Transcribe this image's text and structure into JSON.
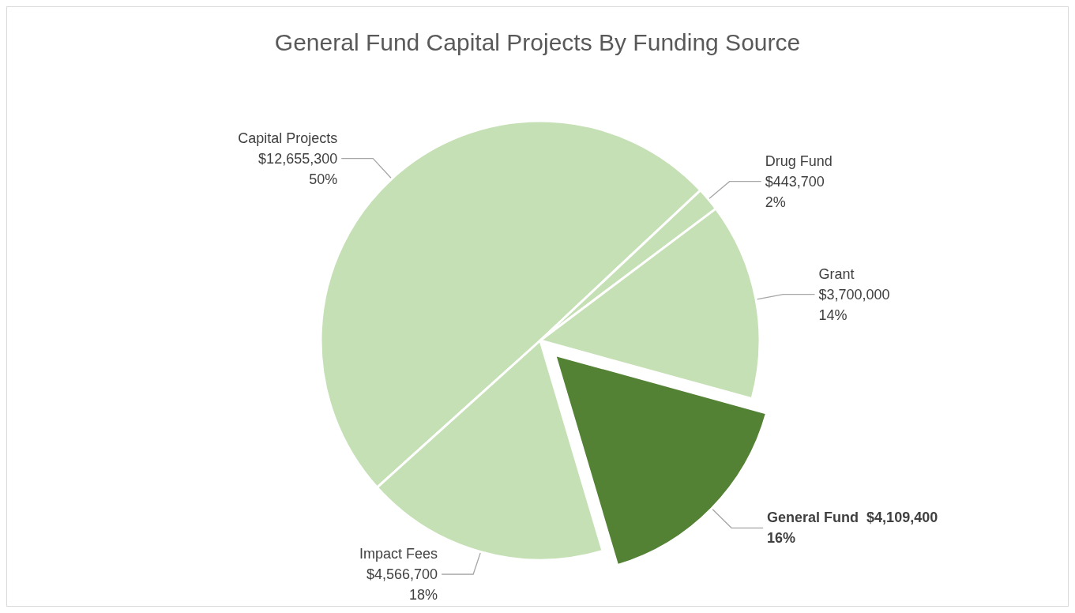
{
  "chart_data": {
    "type": "pie",
    "title": "General Fund Capital Projects By Funding Source",
    "categories": [
      "Capital Projects",
      "Drug Fund",
      "Grant",
      "General Fund",
      "Impact Fees"
    ],
    "values": [
      12655300,
      443700,
      3700000,
      4109400,
      4566700
    ],
    "value_labels": [
      "$12,655,300\n50%",
      "$443,700\n2%",
      "$3,700,000\n14%",
      "$4,109,400\n16%",
      "$4,566,700\n18%"
    ],
    "colors": [
      "#c5e0b4",
      "#c5e0b4",
      "#c5e0b4",
      "#548235",
      "#c5e0b4"
    ],
    "legend": false
  }
}
